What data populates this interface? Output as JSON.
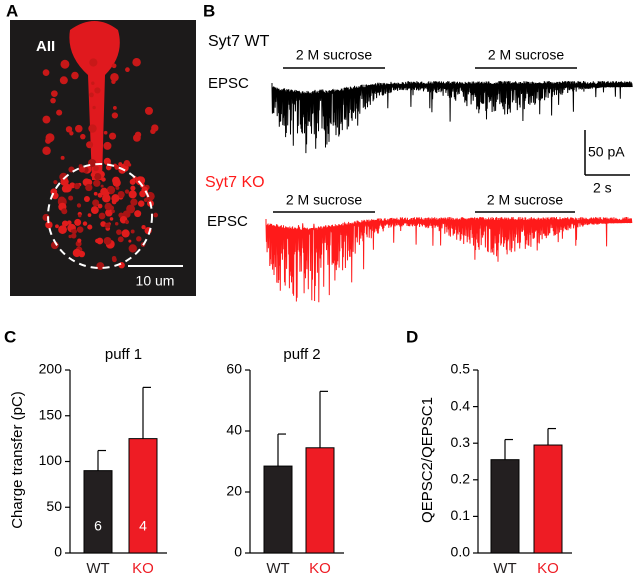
{
  "panels": {
    "a": {
      "label": "A",
      "cell_label": "AII",
      "scale_bar": "10 um"
    },
    "b": {
      "label": "B",
      "scale_y": "50 pA",
      "scale_x": "2 s",
      "traces": [
        {
          "name": "Syt7 WT",
          "signal": "EPSC",
          "color": "#000000",
          "stimuli": [
            "2 M sucrose",
            "2 M sucrose"
          ]
        },
        {
          "name": "Syt7 KO",
          "signal": "EPSC",
          "color": "#ff1a1a",
          "stimuli": [
            "2 M sucrose",
            "2 M sucrose"
          ]
        }
      ]
    },
    "c": {
      "label": "C"
    },
    "d": {
      "label": "D"
    }
  },
  "chart_data": [
    {
      "type": "bar",
      "title": "puff 1",
      "ylabel": "Charge transfer (pC)",
      "categories": [
        "WT",
        "KO"
      ],
      "values": [
        90,
        125
      ],
      "errors": [
        22,
        56
      ],
      "n": [
        6,
        4
      ],
      "colors": [
        "#231f20",
        "#ee1c24"
      ],
      "ylim": [
        0,
        200
      ],
      "yticks": [
        0,
        50,
        100,
        150,
        200
      ]
    },
    {
      "type": "bar",
      "title": "puff 2",
      "categories": [
        "WT",
        "KO"
      ],
      "values": [
        28.5,
        34.5
      ],
      "errors": [
        10.5,
        18.5
      ],
      "colors": [
        "#231f20",
        "#ee1c24"
      ],
      "ylim": [
        0,
        60
      ],
      "yticks": [
        0,
        20,
        40,
        60
      ]
    },
    {
      "type": "bar",
      "ylabel": "QEPSC2/QEPSC1",
      "categories": [
        "WT",
        "KO"
      ],
      "values": [
        0.255,
        0.295
      ],
      "errors": [
        0.055,
        0.045
      ],
      "colors": [
        "#231f20",
        "#ee1c24"
      ],
      "ylim": [
        0,
        0.5
      ],
      "yticks": [
        {
          "value": 0,
          "label": "0.0"
        },
        0.1,
        0.2,
        0.3,
        0.4,
        0.5
      ]
    }
  ]
}
